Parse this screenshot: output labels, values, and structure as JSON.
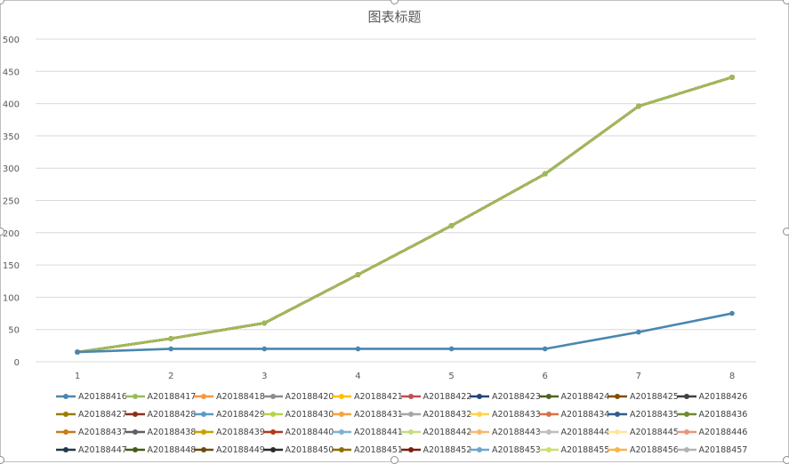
{
  "chart_data": {
    "type": "line",
    "title": "图表标题",
    "categories": [
      "1",
      "2",
      "3",
      "4",
      "5",
      "6",
      "7",
      "8"
    ],
    "ylim": [
      0,
      500
    ],
    "yticks": [
      0,
      50,
      100,
      150,
      200,
      250,
      300,
      350,
      400,
      450,
      500
    ],
    "grid": true,
    "legend_position": "bottom",
    "series": [
      {
        "name": "A20188416",
        "color": "#4a86b0",
        "values": [
          15,
          20,
          20,
          20,
          20,
          20,
          46,
          75
        ]
      },
      {
        "name": "A20188417",
        "color": "#9bbb59",
        "values": [
          15,
          36,
          60,
          135,
          211,
          291,
          396,
          441
        ]
      },
      {
        "name": "A20188418",
        "color": "#f79646",
        "values": [
          15,
          36,
          60,
          135,
          211,
          291,
          396,
          441
        ]
      },
      {
        "name": "A20188420",
        "color": "#8c8c8c",
        "values": [
          15,
          36,
          60,
          135,
          211,
          291,
          396,
          441
        ]
      },
      {
        "name": "A20188421",
        "color": "#ffc000",
        "values": [
          15,
          36,
          60,
          135,
          211,
          291,
          396,
          441
        ]
      },
      {
        "name": "A20188422",
        "color": "#c0504d",
        "values": [
          15,
          36,
          60,
          135,
          211,
          291,
          396,
          441
        ]
      },
      {
        "name": "A20188423",
        "color": "#264478",
        "values": [
          15,
          36,
          60,
          135,
          211,
          291,
          396,
          441
        ]
      },
      {
        "name": "A20188424",
        "color": "#4f6228",
        "values": [
          15,
          36,
          60,
          135,
          211,
          291,
          396,
          441
        ]
      },
      {
        "name": "A20188425",
        "color": "#7f4f00",
        "values": [
          15,
          36,
          60,
          135,
          211,
          291,
          396,
          441
        ]
      },
      {
        "name": "A20188426",
        "color": "#404040",
        "values": [
          15,
          36,
          60,
          135,
          211,
          291,
          396,
          441
        ]
      },
      {
        "name": "A20188427",
        "color": "#9c7c00",
        "values": [
          15,
          36,
          60,
          135,
          211,
          291,
          396,
          441
        ]
      },
      {
        "name": "A20188428",
        "color": "#8b2e1a",
        "values": [
          15,
          36,
          60,
          135,
          211,
          291,
          396,
          441
        ]
      },
      {
        "name": "A20188429",
        "color": "#5b9bc2",
        "values": [
          15,
          36,
          60,
          135,
          211,
          291,
          396,
          441
        ]
      },
      {
        "name": "A20188430",
        "color": "#b4d44c",
        "values": [
          15,
          36,
          60,
          135,
          211,
          291,
          396,
          441
        ]
      },
      {
        "name": "A20188431",
        "color": "#f4a43a",
        "values": [
          15,
          36,
          60,
          135,
          211,
          291,
          396,
          441
        ]
      },
      {
        "name": "A20188432",
        "color": "#a6a6a6",
        "values": [
          15,
          36,
          60,
          135,
          211,
          291,
          396,
          441
        ]
      },
      {
        "name": "A20188433",
        "color": "#ffd24d",
        "values": [
          15,
          36,
          60,
          135,
          211,
          291,
          396,
          441
        ]
      },
      {
        "name": "A20188434",
        "color": "#d9704a",
        "values": [
          15,
          36,
          60,
          135,
          211,
          291,
          396,
          441
        ]
      },
      {
        "name": "A20188435",
        "color": "#2e5d8c",
        "values": [
          15,
          36,
          60,
          135,
          211,
          291,
          396,
          441
        ]
      },
      {
        "name": "A20188436",
        "color": "#6f8a2f",
        "values": [
          15,
          36,
          60,
          135,
          211,
          291,
          396,
          441
        ]
      },
      {
        "name": "A20188437",
        "color": "#c87a1e",
        "values": [
          15,
          36,
          60,
          135,
          211,
          291,
          396,
          441
        ]
      },
      {
        "name": "A20188438",
        "color": "#606060",
        "values": [
          15,
          36,
          60,
          135,
          211,
          291,
          396,
          441
        ]
      },
      {
        "name": "A20188439",
        "color": "#c9a100",
        "values": [
          15,
          36,
          60,
          135,
          211,
          291,
          396,
          441
        ]
      },
      {
        "name": "A20188440",
        "color": "#b5381a",
        "values": [
          15,
          36,
          60,
          135,
          211,
          291,
          396,
          441
        ]
      },
      {
        "name": "A20188441",
        "color": "#7fb3d5",
        "values": [
          15,
          36,
          60,
          135,
          211,
          291,
          396,
          441
        ]
      },
      {
        "name": "A20188442",
        "color": "#c6de7e",
        "values": [
          15,
          36,
          60,
          135,
          211,
          291,
          396,
          441
        ]
      },
      {
        "name": "A20188443",
        "color": "#f6b96b",
        "values": [
          15,
          36,
          60,
          135,
          211,
          291,
          396,
          441
        ]
      },
      {
        "name": "A20188444",
        "color": "#bfbfbf",
        "values": [
          15,
          36,
          60,
          135,
          211,
          291,
          396,
          441
        ]
      },
      {
        "name": "A20188445",
        "color": "#ffe699",
        "values": [
          15,
          36,
          60,
          135,
          211,
          291,
          396,
          441
        ]
      },
      {
        "name": "A20188446",
        "color": "#e8967a",
        "values": [
          15,
          36,
          60,
          135,
          211,
          291,
          396,
          441
        ]
      },
      {
        "name": "A20188447",
        "color": "#1f3a4d",
        "values": [
          15,
          36,
          60,
          135,
          211,
          291,
          396,
          441
        ]
      },
      {
        "name": "A20188448",
        "color": "#445c18",
        "values": [
          15,
          36,
          60,
          135,
          211,
          291,
          396,
          441
        ]
      },
      {
        "name": "A20188449",
        "color": "#6b4a10",
        "values": [
          15,
          36,
          60,
          135,
          211,
          291,
          396,
          441
        ]
      },
      {
        "name": "A20188450",
        "color": "#2b2b2b",
        "values": [
          15,
          36,
          60,
          135,
          211,
          291,
          396,
          441
        ]
      },
      {
        "name": "A20188451",
        "color": "#8f6e00",
        "values": [
          15,
          36,
          60,
          135,
          211,
          291,
          396,
          441
        ]
      },
      {
        "name": "A20188452",
        "color": "#7a1e10",
        "values": [
          15,
          36,
          60,
          135,
          211,
          291,
          396,
          441
        ]
      },
      {
        "name": "A20188453",
        "color": "#6fa6cf",
        "values": [
          15,
          36,
          60,
          135,
          211,
          291,
          396,
          441
        ]
      },
      {
        "name": "A20188455",
        "color": "#cde06a",
        "values": [
          15,
          36,
          60,
          135,
          211,
          291,
          396,
          441
        ]
      },
      {
        "name": "A20188456",
        "color": "#f7b44a",
        "values": [
          15,
          36,
          60,
          135,
          211,
          291,
          396,
          441
        ]
      },
      {
        "name": "A20188457",
        "color": "#b3b3b3",
        "values": [
          15,
          36,
          60,
          135,
          211,
          291,
          396,
          441
        ]
      }
    ]
  }
}
